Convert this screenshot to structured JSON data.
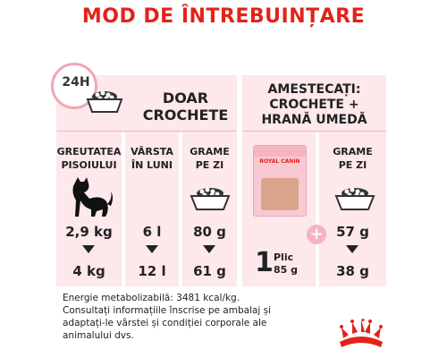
{
  "title": "MOD DE ÎNTREBUINȚARE",
  "badge_24h": "24H",
  "left": {
    "header_line1": "DOAR",
    "header_line2": "CROCHETE",
    "col_weight_line1": "GREUTATEA",
    "col_weight_line2": "PISOIULUI",
    "col_age_line1": "VÂRSTA",
    "col_age_line2": "ÎN LUNI",
    "col_grams_line1": "GRAME",
    "col_grams_line2": "PE ZI",
    "rows": [
      {
        "weight": "2,9 kg",
        "age": "6 l",
        "grams": "80 g"
      },
      {
        "weight": "4 kg",
        "age": "12 l",
        "grams": "61 g"
      }
    ]
  },
  "right": {
    "header_line1": "AMESTECAȚI:",
    "header_line2": "CROCHETE +",
    "header_line3": "HRANĂ UMEDĂ",
    "col_grams_line1": "GRAME",
    "col_grams_line2": "PE ZI",
    "pouch_brand": "ROYAL CANIN",
    "plus_sign": "+",
    "plic_number": "1",
    "plic_label": "Plic",
    "plic_weight": "85 g",
    "rows": [
      {
        "grams": "57 g"
      },
      {
        "grams": "38 g"
      }
    ]
  },
  "note_line1": "Energie metabolizabilă: 3481 kcal/kg.",
  "note_line2": "Consultați informațiile înscrise pe ambalaj și",
  "note_line3": "adaptați-le vârstei și condiției corporale ale",
  "note_line4": "animalului dvs.",
  "colors": {
    "accent": "#e2231a",
    "panel": "#fde8eb",
    "ring": "#f2a6b4"
  }
}
